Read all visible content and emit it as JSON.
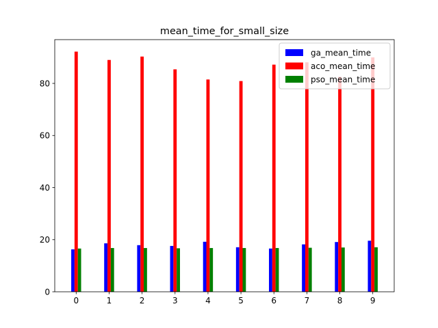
{
  "chart_data": {
    "type": "bar",
    "title": "mean_time_for_small_size",
    "xlabel": "",
    "ylabel": "",
    "categories": [
      "0",
      "1",
      "2",
      "3",
      "4",
      "5",
      "6",
      "7",
      "8",
      "9"
    ],
    "series": [
      {
        "name": "ga_mean_time",
        "color": "#0000ff",
        "values": [
          16.3,
          18.6,
          17.9,
          17.6,
          19.2,
          17.1,
          16.6,
          18.2,
          19.1,
          19.6
        ]
      },
      {
        "name": "aco_mean_time",
        "color": "#ff0000",
        "values": [
          92.2,
          89.0,
          90.3,
          85.4,
          81.5,
          80.9,
          87.2,
          88.1,
          82.5,
          90.0
        ]
      },
      {
        "name": "pso_mean_time",
        "color": "#008000",
        "values": [
          16.6,
          16.8,
          16.8,
          16.7,
          16.8,
          16.8,
          16.8,
          16.9,
          17.0,
          17.1
        ]
      }
    ],
    "yticks": [
      0,
      20,
      40,
      60,
      80
    ],
    "ylim": [
      0,
      96.8
    ],
    "xlim": [
      -0.65,
      9.65
    ],
    "grid": false,
    "legend_position": "top-right"
  }
}
